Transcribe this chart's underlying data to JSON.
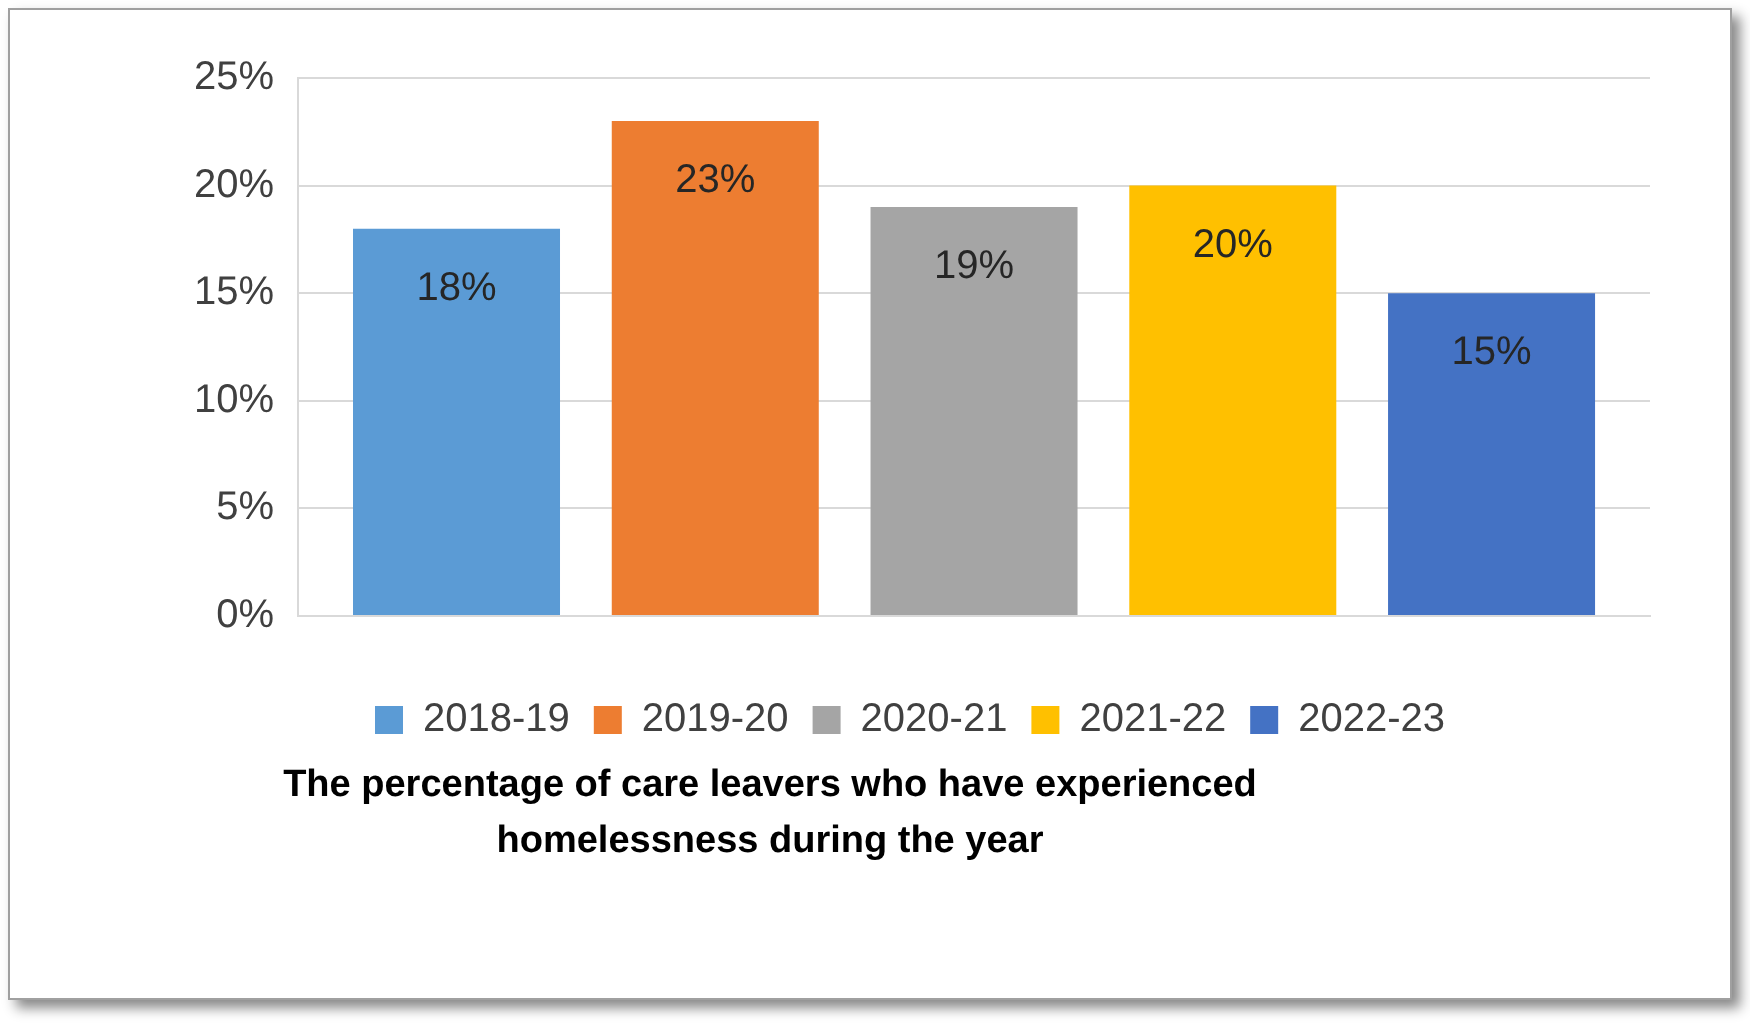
{
  "chart_data": {
    "type": "bar",
    "title": "The percentage of care leavers who have experienced homelessness during the year",
    "categories": [
      null
    ],
    "series": [
      {
        "name": "2018-19",
        "color": "#5b9bd5",
        "values": [
          18
        ],
        "value_labels": [
          "18%"
        ]
      },
      {
        "name": "2019-20",
        "color": "#ed7d31",
        "values": [
          23
        ],
        "value_labels": [
          "23%"
        ]
      },
      {
        "name": "2020-21",
        "color": "#a5a5a5",
        "values": [
          19
        ],
        "value_labels": [
          "19%"
        ]
      },
      {
        "name": "2021-22",
        "color": "#ffc000",
        "values": [
          20
        ],
        "value_labels": [
          "20%"
        ]
      },
      {
        "name": "2022-23",
        "color": "#4472c4",
        "values": [
          15
        ],
        "value_labels": [
          "15%"
        ]
      }
    ],
    "ylim": [
      0,
      25
    ],
    "yticks": [
      {
        "value": 0,
        "label": "0%"
      },
      {
        "value": 5,
        "label": "5%"
      },
      {
        "value": 10,
        "label": "10%"
      },
      {
        "value": 15,
        "label": "15%"
      },
      {
        "value": 20,
        "label": "20%"
      },
      {
        "value": 25,
        "label": "25%"
      }
    ],
    "grid": "y",
    "legend": "bottom"
  }
}
